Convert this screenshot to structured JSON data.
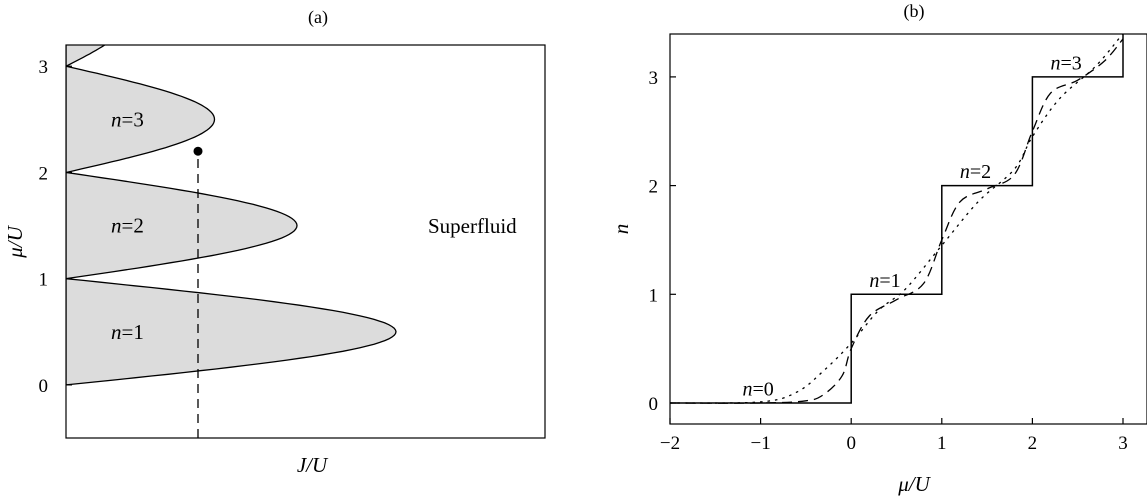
{
  "chart_data": [
    {
      "type": "area",
      "title": "(a)",
      "xlabel": "J/U",
      "ylabel": "μ/U",
      "ylim": [
        -0.5,
        3.2
      ],
      "yticks": [
        "0",
        "1",
        "2",
        "3"
      ],
      "lobes": [
        {
          "n": 1,
          "mu_range": [
            0,
            1
          ],
          "tip_J": 1.0,
          "label": "n=1"
        },
        {
          "n": 2,
          "mu_range": [
            1,
            2
          ],
          "tip_J": 0.7,
          "label": "n=2"
        },
        {
          "n": 3,
          "mu_range": [
            2,
            3
          ],
          "tip_J": 0.45,
          "label": "n=3"
        }
      ],
      "region_label": "Superfluid",
      "fill_color": "#dcdcdc",
      "marker": {
        "J": 0.4,
        "mu": 2.2
      },
      "dashed_line": {
        "J": 0.4,
        "from_mu": -0.5,
        "to_mu": 2.2
      }
    },
    {
      "type": "line",
      "title": "(b)",
      "xlabel": "μ/U",
      "ylabel": "n",
      "xlim": [
        -2,
        3.3
      ],
      "ylim": [
        -0.1,
        3.4
      ],
      "xticks": [
        "−2",
        "−1",
        "0",
        "1",
        "2",
        "3"
      ],
      "yticks": [
        "0",
        "1",
        "2",
        "3"
      ],
      "series": [
        {
          "style": "solid",
          "x": [
            -2,
            0,
            0,
            1,
            1,
            2,
            2,
            3,
            3
          ],
          "y": [
            0,
            0,
            1,
            1,
            2,
            2,
            3,
            3,
            3.4
          ]
        },
        {
          "style": "dashed",
          "x": [
            -2,
            -1,
            -0.5,
            -0.3,
            -0.1,
            0,
            0.2,
            0.5,
            0.8,
            1,
            1.2,
            1.5,
            1.8,
            2,
            2.2,
            2.5,
            2.8,
            3
          ],
          "y": [
            0,
            0,
            0.02,
            0.08,
            0.25,
            0.5,
            0.8,
            0.95,
            1.1,
            1.5,
            1.85,
            1.97,
            2.1,
            2.5,
            2.85,
            2.97,
            3.15,
            3.35
          ]
        },
        {
          "style": "dotted",
          "x": [
            -2,
            -1,
            -0.6,
            -0.3,
            0,
            0.3,
            0.6,
            1,
            1.4,
            1.8,
            2,
            2.3,
            2.7,
            3
          ],
          "y": [
            0,
            0.01,
            0.1,
            0.3,
            0.55,
            0.85,
            1.05,
            1.45,
            1.85,
            2.15,
            2.45,
            2.8,
            3.1,
            3.4
          ]
        }
      ],
      "annotations": [
        {
          "text": "n=0",
          "x": -1.2,
          "y": 0.05
        },
        {
          "text": "n=1",
          "x": 0.2,
          "y": 1.05
        },
        {
          "text": "n=2",
          "x": 1.2,
          "y": 2.05
        },
        {
          "text": "n=3",
          "x": 2.2,
          "y": 3.05
        }
      ]
    }
  ]
}
